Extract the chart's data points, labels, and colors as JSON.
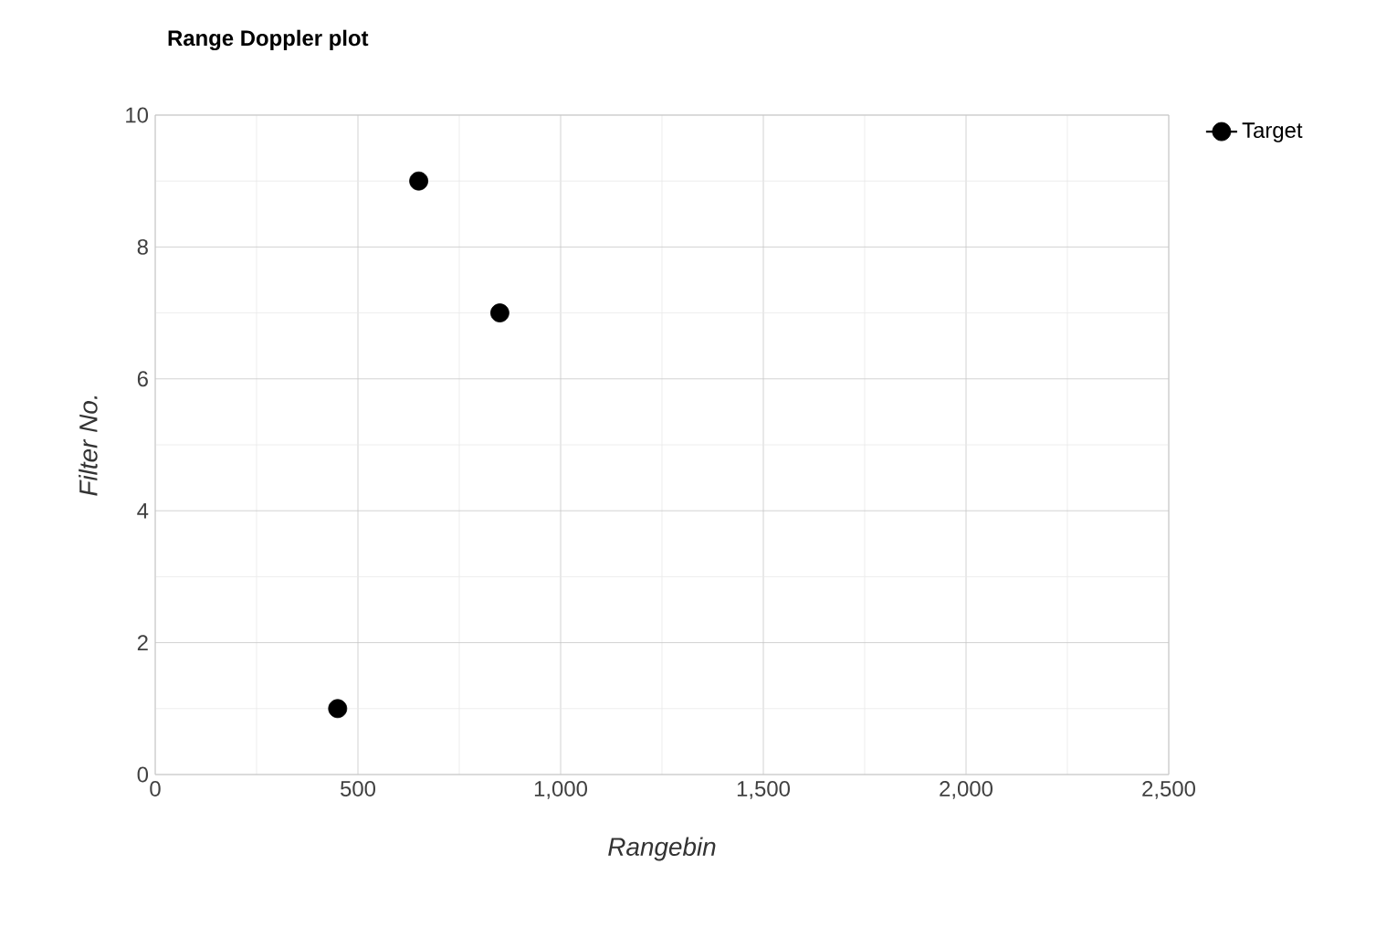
{
  "chart_data": {
    "type": "scatter",
    "title": "Range Doppler plot",
    "xlabel": "Rangebin",
    "ylabel": "Filter No.",
    "x": [
      450,
      650,
      850
    ],
    "series": [
      {
        "name": "Target",
        "color": "#000000",
        "values": [
          1,
          9,
          7
        ]
      }
    ],
    "xlim": [
      0,
      2500
    ],
    "ylim": [
      0,
      10
    ],
    "xticks": [
      0,
      500,
      {
        "value": 1000,
        "label": "1,000"
      },
      {
        "value": 1500,
        "label": "1,500"
      },
      {
        "value": 2000,
        "label": "2,000"
      },
      {
        "value": 2500,
        "label": "2,500"
      }
    ],
    "yticks": [
      0,
      2,
      4,
      6,
      8,
      10
    ],
    "grid": true,
    "legend": "top right",
    "marker": "circle"
  }
}
